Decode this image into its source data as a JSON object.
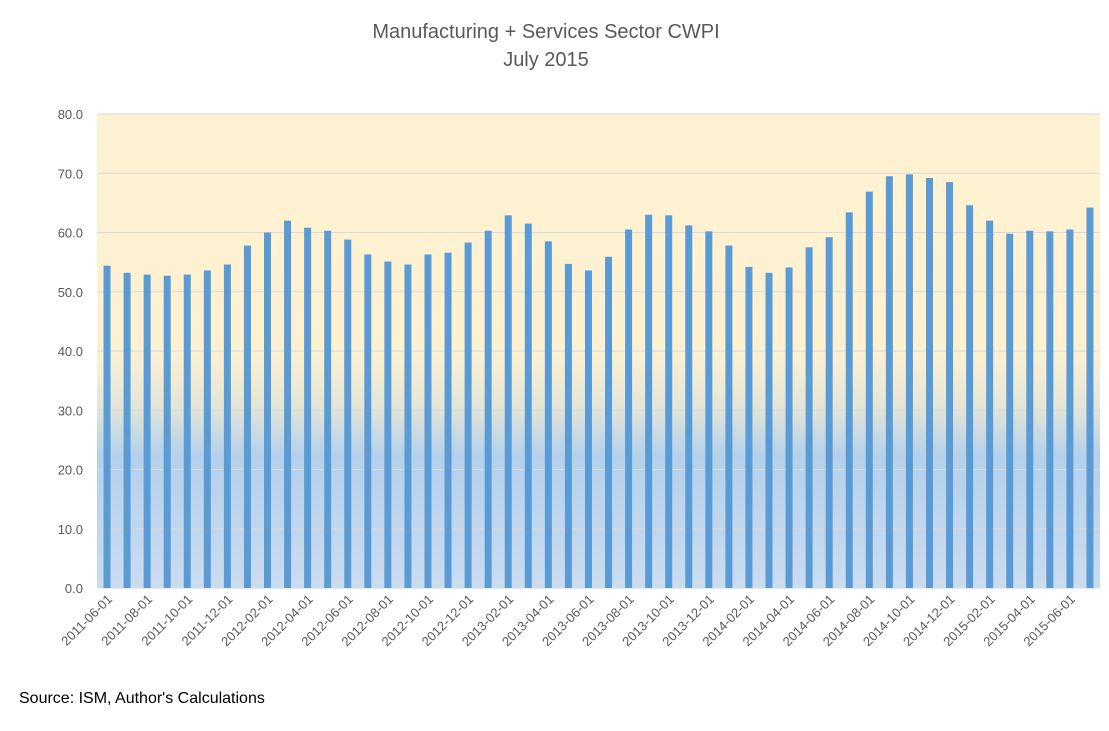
{
  "chart_data": {
    "type": "bar",
    "title": "Manufacturing + Services Sector CWPI",
    "subtitle": "July 2015",
    "xlabel": "",
    "ylabel": "",
    "ylim": [
      0,
      80
    ],
    "yticks": [
      "0.0",
      "10.0",
      "20.0",
      "30.0",
      "40.0",
      "50.0",
      "60.0",
      "70.0",
      "80.0"
    ],
    "grid": true,
    "legend": "none",
    "bar_color": "#5B9BD5",
    "background_gradient": {
      "top": "#FFF2D3",
      "bottom": "#C9DCF0"
    },
    "categories": [
      "2011-06-01",
      "2011-07-01",
      "2011-08-01",
      "2011-09-01",
      "2011-10-01",
      "2011-11-01",
      "2011-12-01",
      "2012-01-01",
      "2012-02-01",
      "2012-03-01",
      "2012-04-01",
      "2012-05-01",
      "2012-06-01",
      "2012-07-01",
      "2012-08-01",
      "2012-09-01",
      "2012-10-01",
      "2012-11-01",
      "2012-12-01",
      "2013-01-01",
      "2013-02-01",
      "2013-03-01",
      "2013-04-01",
      "2013-05-01",
      "2013-06-01",
      "2013-07-01",
      "2013-08-01",
      "2013-09-01",
      "2013-10-01",
      "2013-11-01",
      "2013-12-01",
      "2014-01-01",
      "2014-02-01",
      "2014-03-01",
      "2014-04-01",
      "2014-05-01",
      "2014-06-01",
      "2014-07-01",
      "2014-08-01",
      "2014-09-01",
      "2014-10-01",
      "2014-11-01",
      "2014-12-01",
      "2015-01-01",
      "2015-02-01",
      "2015-03-01",
      "2015-04-01",
      "2015-05-01",
      "2015-06-01",
      "2015-07-01"
    ],
    "visible_xtick_labels": [
      "2011-06-01",
      "2011-08-01",
      "2011-10-01",
      "2011-12-01",
      "2012-02-01",
      "2012-04-01",
      "2012-06-01",
      "2012-08-01",
      "2012-10-01",
      "2012-12-01",
      "2013-02-01",
      "2013-04-01",
      "2013-06-01",
      "2013-08-01",
      "2013-10-01",
      "2013-12-01",
      "2014-02-01",
      "2014-04-01",
      "2014-06-01",
      "2014-08-01",
      "2014-10-01",
      "2014-12-01",
      "2015-02-01",
      "2015-04-01",
      "2015-06-01"
    ],
    "values": [
      54.4,
      53.2,
      52.9,
      52.7,
      52.9,
      53.6,
      54.6,
      57.8,
      60.0,
      62.0,
      60.8,
      60.3,
      58.8,
      56.3,
      55.1,
      54.6,
      56.3,
      56.6,
      58.3,
      60.3,
      62.9,
      61.5,
      58.5,
      54.7,
      53.6,
      55.9,
      60.5,
      63.0,
      62.9,
      61.2,
      60.2,
      57.8,
      54.2,
      53.2,
      54.1,
      57.5,
      59.2,
      63.4,
      66.9,
      69.5,
      69.8,
      69.2,
      68.5,
      64.6,
      62.0,
      59.8,
      60.3,
      60.2,
      60.5,
      64.2
    ]
  },
  "footer": {
    "source": "Source: ISM, Author's Calculations"
  }
}
